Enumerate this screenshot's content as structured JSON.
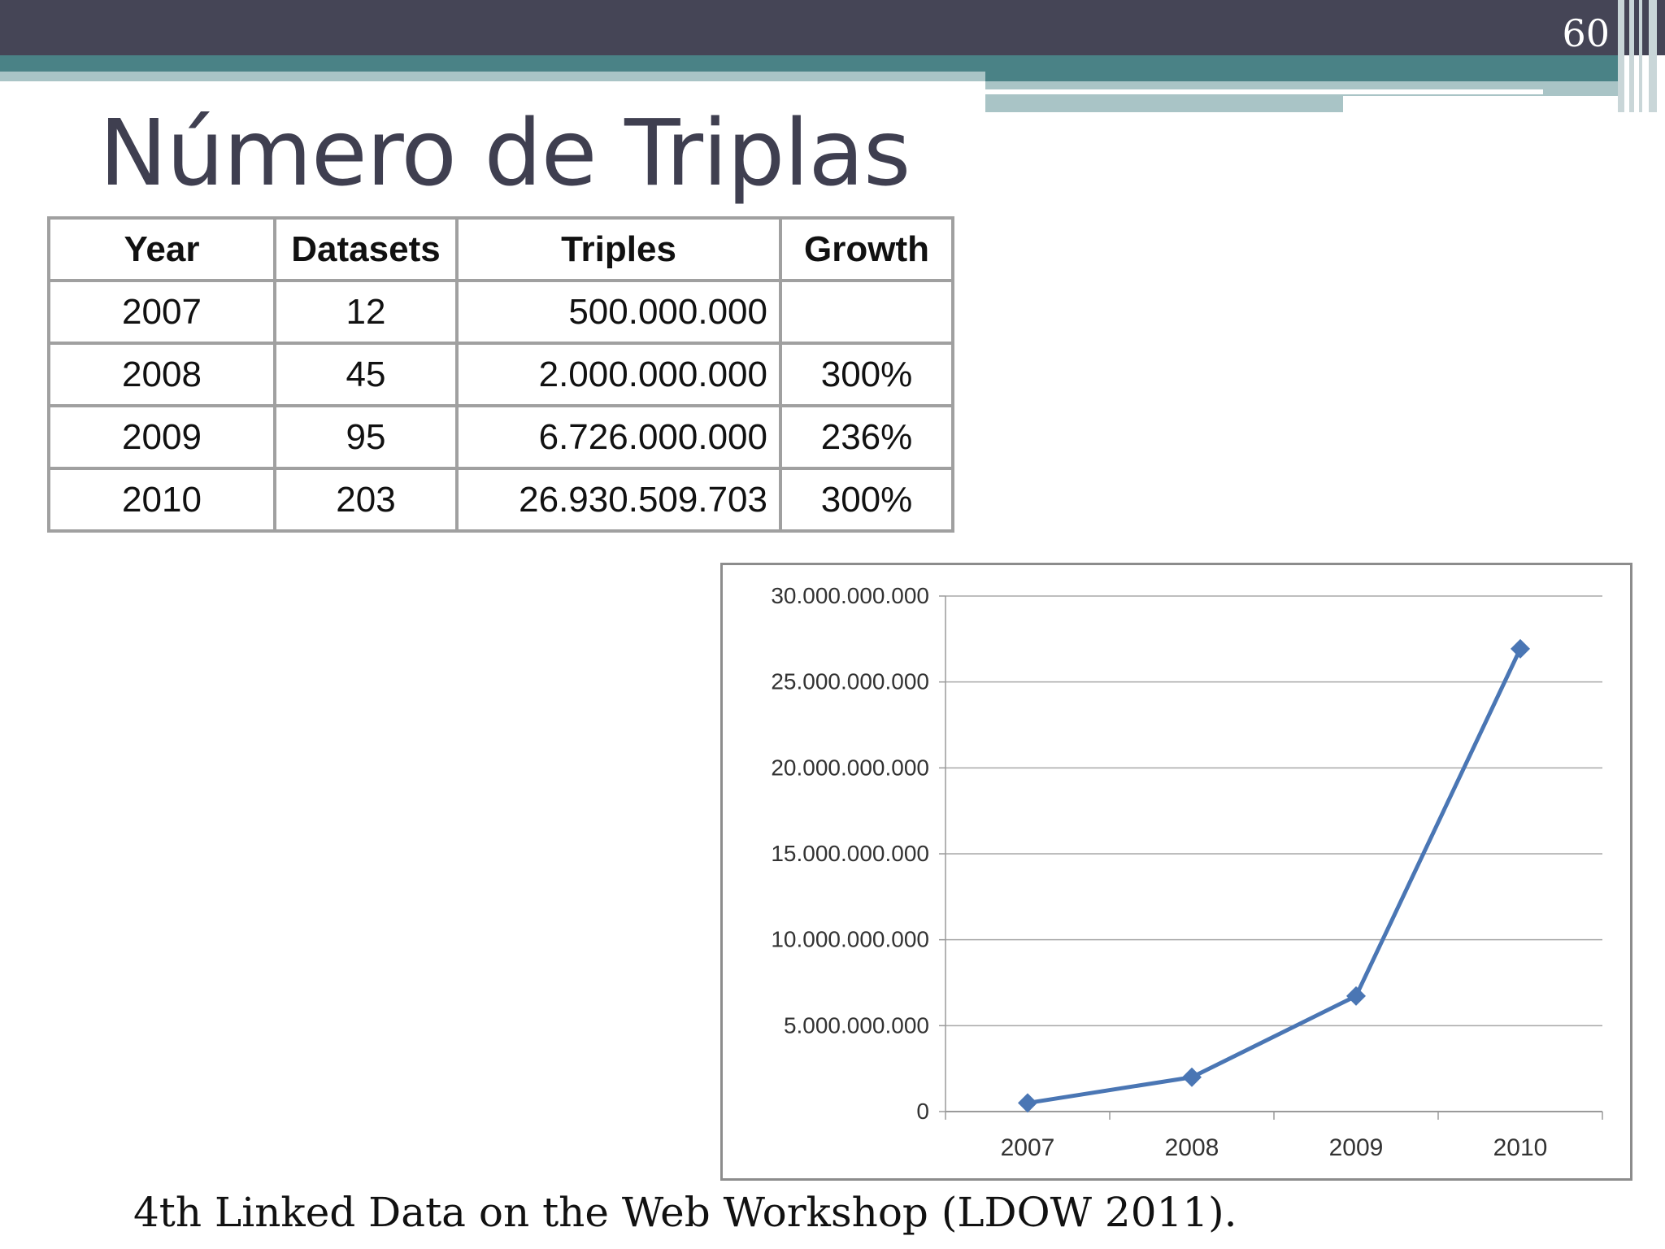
{
  "slide": {
    "number": "60",
    "title": "Número de Triplas"
  },
  "table": {
    "headers": [
      "Year",
      "Datasets",
      "Triples",
      "Growth"
    ],
    "rows": [
      [
        "2007",
        "12",
        "500.000.000",
        ""
      ],
      [
        "2008",
        "45",
        "2.000.000.000",
        "300%"
      ],
      [
        "2009",
        "95",
        "6.726.000.000",
        "236%"
      ],
      [
        "2010",
        "203",
        "26.930.509.703",
        "300%"
      ]
    ]
  },
  "chart_data": {
    "type": "line",
    "title": "",
    "xlabel": "",
    "ylabel": "",
    "categories": [
      "2007",
      "2008",
      "2009",
      "2010"
    ],
    "series": [
      {
        "values": [
          500000000,
          2000000000,
          6726000000,
          26930509703
        ]
      }
    ],
    "ylim": [
      0,
      30000000000
    ],
    "y_ticks": [
      0,
      5000000000,
      10000000000,
      15000000000,
      20000000000,
      25000000000,
      30000000000
    ],
    "y_tick_labels": [
      "0",
      "5.000.000.000",
      "10.000.000.000",
      "15.000.000.000",
      "20.000.000.000",
      "25.000.000.000",
      "30.000.000.000"
    ],
    "grid": true,
    "legend": "none",
    "line_color": "#4a76b4"
  },
  "caption": "4th Linked Data on the Web Workshop (LDOW 2011)."
}
